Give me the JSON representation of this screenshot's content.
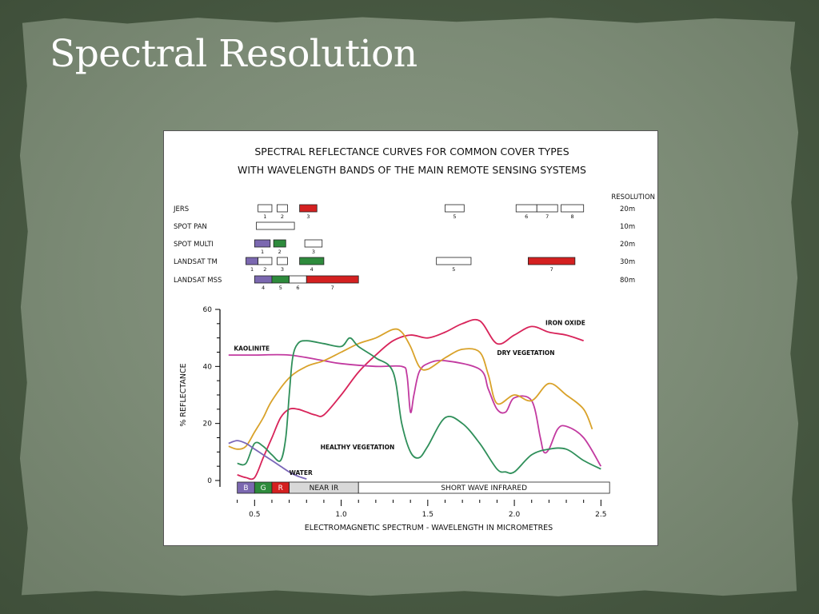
{
  "slide": {
    "title": "Spectral Resolution"
  },
  "chart_data": {
    "type": "line",
    "title_line1": "SPECTRAL REFLECTANCE CURVES FOR COMMON COVER TYPES",
    "title_line2": "WITH WAVELENGTH BANDS OF THE MAIN REMOTE SENSING SYSTEMS",
    "xlabel": "ELECTROMAGNETIC SPECTRUM - WAVELENGTH IN MICROMETRES",
    "ylabel": "% REFLECTANCE",
    "xlim": [
      0.3,
      2.6
    ],
    "ylim": [
      0,
      60
    ],
    "x_ticks": [
      {
        "value": 0.5,
        "label": "0.5"
      },
      {
        "value": 1.0,
        "label": "1.0"
      },
      {
        "value": 1.5,
        "label": "1.5"
      },
      {
        "value": 2.0,
        "label": "2.0"
      },
      {
        "value": 2.5,
        "label": "2.5"
      }
    ],
    "y_ticks": [
      {
        "value": 0,
        "label": "0"
      },
      {
        "value": 20,
        "label": "20"
      },
      {
        "value": 40,
        "label": "40"
      },
      {
        "value": 60,
        "label": "60"
      }
    ],
    "spectrum_bar": [
      {
        "label": "B",
        "start": 0.4,
        "end": 0.5,
        "color": "#7b68b0"
      },
      {
        "label": "G",
        "start": 0.5,
        "end": 0.6,
        "color": "#2e8b3c"
      },
      {
        "label": "R",
        "start": 0.6,
        "end": 0.7,
        "color": "#d42020"
      },
      {
        "label": "NEAR IR",
        "start": 0.7,
        "end": 1.1,
        "color": "#d8d8d8"
      },
      {
        "label": "SHORT WAVE INFRARED",
        "start": 1.1,
        "end": 2.6,
        "color": "#ffffff"
      }
    ],
    "series": [
      {
        "name": "IRON OXIDE",
        "color": "#d8245a",
        "x": [
          0.4,
          0.45,
          0.5,
          0.55,
          0.6,
          0.65,
          0.7,
          0.75,
          0.8,
          0.85,
          0.9,
          1.0,
          1.1,
          1.2,
          1.3,
          1.4,
          1.5,
          1.6,
          1.7,
          1.8,
          1.9,
          2.0,
          2.1,
          2.2,
          2.3,
          2.4
        ],
        "y": [
          2,
          1,
          1,
          8,
          15,
          22,
          25,
          25,
          24,
          23,
          23,
          30,
          38,
          44,
          49,
          51,
          50,
          52,
          55,
          56,
          48,
          51,
          54,
          52,
          51,
          49
        ]
      },
      {
        "name": "KAOLINITE",
        "color": "#c23aa0",
        "x": [
          0.35,
          0.5,
          0.7,
          0.9,
          1.0,
          1.2,
          1.35,
          1.38,
          1.4,
          1.42,
          1.45,
          1.5,
          1.6,
          1.8,
          1.85,
          1.9,
          1.95,
          2.0,
          2.1,
          2.15,
          2.17,
          2.2,
          2.25,
          2.3,
          2.4,
          2.5
        ],
        "y": [
          44,
          44,
          44,
          42,
          41,
          40,
          40,
          37,
          24,
          30,
          38,
          41,
          42,
          39,
          32,
          25,
          24,
          29,
          28,
          15,
          10,
          11,
          18,
          19,
          15,
          5
        ]
      },
      {
        "name": "DRY VEGETATION",
        "color": "#d9a22a",
        "x": [
          0.35,
          0.4,
          0.45,
          0.5,
          0.55,
          0.6,
          0.7,
          0.8,
          0.9,
          1.0,
          1.1,
          1.2,
          1.3,
          1.35,
          1.4,
          1.45,
          1.5,
          1.6,
          1.7,
          1.8,
          1.85,
          1.9,
          2.0,
          2.1,
          2.2,
          2.3,
          2.4,
          2.45
        ],
        "y": [
          12,
          11,
          12,
          17,
          22,
          28,
          36,
          40,
          42,
          45,
          48,
          50,
          53,
          52,
          47,
          40,
          39,
          43,
          46,
          45,
          37,
          27,
          30,
          28,
          34,
          30,
          25,
          18
        ]
      },
      {
        "name": "HEALTHY VEGETATION",
        "color": "#2f8f5a",
        "x": [
          0.4,
          0.45,
          0.5,
          0.55,
          0.6,
          0.65,
          0.68,
          0.7,
          0.72,
          0.75,
          0.8,
          0.9,
          1.0,
          1.05,
          1.1,
          1.2,
          1.3,
          1.35,
          1.4,
          1.45,
          1.5,
          1.6,
          1.7,
          1.8,
          1.9,
          1.95,
          2.0,
          2.1,
          2.2,
          2.3,
          2.4,
          2.5
        ],
        "y": [
          6,
          6,
          13,
          12,
          9,
          7,
          15,
          30,
          43,
          48,
          49,
          48,
          47,
          50,
          47,
          43,
          38,
          20,
          10,
          8,
          12,
          22,
          20,
          13,
          4,
          3,
          3,
          9,
          11,
          11,
          7,
          4
        ]
      },
      {
        "name": "WATER",
        "color": "#7a66b8",
        "x": [
          0.35,
          0.4,
          0.45,
          0.5,
          0.55,
          0.6,
          0.65,
          0.7,
          0.75,
          0.8
        ],
        "y": [
          13,
          14,
          13,
          11,
          9,
          7,
          5,
          3,
          1.5,
          0.5
        ]
      }
    ],
    "label_positions_note": "",
    "sensors": {
      "resolution_header": "RESOLUTION",
      "rows": [
        {
          "name": "JERS",
          "resolution": "20m",
          "bands": [
            {
              "label": "1",
              "start": 0.52,
              "end": 0.6,
              "color": "#ffffff"
            },
            {
              "label": "2",
              "start": 0.63,
              "end": 0.69,
              "color": "#ffffff"
            },
            {
              "label": "3",
              "start": 0.76,
              "end": 0.86,
              "color": "#d42020"
            },
            {
              "label": "5",
              "start": 1.6,
              "end": 1.71,
              "color": "#ffffff"
            },
            {
              "label": "6",
              "start": 2.01,
              "end": 2.13,
              "color": "#ffffff"
            },
            {
              "label": "7",
              "start": 2.13,
              "end": 2.25,
              "color": "#ffffff"
            },
            {
              "label": "8",
              "start": 2.27,
              "end": 2.4,
              "color": "#ffffff"
            }
          ]
        },
        {
          "name": "SPOT PAN",
          "resolution": "10m",
          "bands": [
            {
              "label": "",
              "start": 0.51,
              "end": 0.73,
              "color": "#ffffff"
            }
          ]
        },
        {
          "name": "SPOT MULTI",
          "resolution": "20m",
          "bands": [
            {
              "label": "1",
              "start": 0.5,
              "end": 0.59,
              "color": "#7b68b0"
            },
            {
              "label": "2",
              "start": 0.61,
              "end": 0.68,
              "color": "#2e8b3c"
            },
            {
              "label": "3",
              "start": 0.79,
              "end": 0.89,
              "color": "#ffffff"
            }
          ]
        },
        {
          "name": "LANDSAT TM",
          "resolution": "30m",
          "bands": [
            {
              "label": "1",
              "start": 0.45,
              "end": 0.52,
              "color": "#7b68b0"
            },
            {
              "label": "2",
              "start": 0.52,
              "end": 0.6,
              "color": "#ffffff"
            },
            {
              "label": "3",
              "start": 0.63,
              "end": 0.69,
              "color": "#ffffff"
            },
            {
              "label": "4",
              "start": 0.76,
              "end": 0.9,
              "color": "#2e8b3c"
            },
            {
              "label": "5",
              "start": 1.55,
              "end": 1.75,
              "color": "#ffffff"
            },
            {
              "label": "7",
              "start": 2.08,
              "end": 2.35,
              "color": "#d42020"
            }
          ]
        },
        {
          "name": "LANDSAT MSS",
          "resolution": "80m",
          "bands": [
            {
              "label": "4",
              "start": 0.5,
              "end": 0.6,
              "color": "#7b68b0"
            },
            {
              "label": "5",
              "start": 0.6,
              "end": 0.7,
              "color": "#2e8b3c"
            },
            {
              "label": "6",
              "start": 0.7,
              "end": 0.8,
              "color": "#ffffff"
            },
            {
              "label": "7",
              "start": 0.8,
              "end": 1.1,
              "color": "#d42020"
            }
          ]
        }
      ]
    }
  }
}
